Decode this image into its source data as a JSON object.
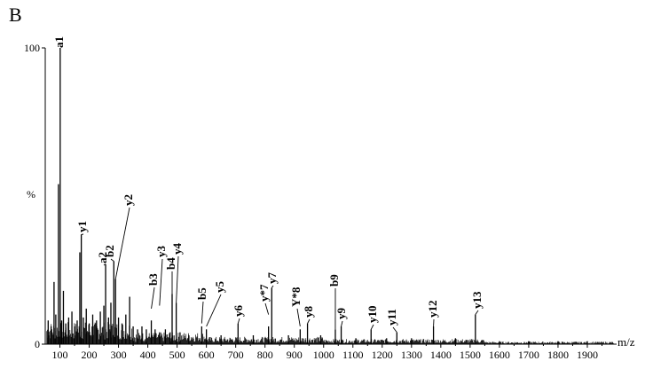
{
  "chart_data": {
    "type": "bar",
    "panel_label": "B",
    "ylabel": "%",
    "xlabel": "m/z",
    "xlim": [
      50,
      2000
    ],
    "ylim": [
      0,
      100
    ],
    "y_ticks": [
      0,
      100
    ],
    "x_ticks": [
      100,
      200,
      300,
      400,
      500,
      600,
      700,
      800,
      900,
      1000,
      1100,
      1200,
      1300,
      1400,
      1500,
      1600,
      1700,
      1800,
      1900
    ],
    "peaks": [
      {
        "x": 60,
        "y": 8
      },
      {
        "x": 70,
        "y": 6
      },
      {
        "x": 80,
        "y": 21
      },
      {
        "x": 86,
        "y": 10
      },
      {
        "x": 95,
        "y": 54
      },
      {
        "x": 101,
        "y": 100
      },
      {
        "x": 106,
        "y": 8
      },
      {
        "x": 112,
        "y": 18
      },
      {
        "x": 120,
        "y": 7
      },
      {
        "x": 130,
        "y": 9
      },
      {
        "x": 141,
        "y": 11
      },
      {
        "x": 150,
        "y": 6
      },
      {
        "x": 159,
        "y": 8
      },
      {
        "x": 168,
        "y": 31
      },
      {
        "x": 173,
        "y": 37
      },
      {
        "x": 180,
        "y": 9
      },
      {
        "x": 190,
        "y": 12
      },
      {
        "x": 200,
        "y": 7
      },
      {
        "x": 212,
        "y": 10
      },
      {
        "x": 225,
        "y": 8
      },
      {
        "x": 238,
        "y": 11
      },
      {
        "x": 250,
        "y": 13
      },
      {
        "x": 256,
        "y": 27
      },
      {
        "x": 266,
        "y": 9
      },
      {
        "x": 274,
        "y": 14
      },
      {
        "x": 284,
        "y": 28
      },
      {
        "x": 290,
        "y": 22
      },
      {
        "x": 300,
        "y": 9
      },
      {
        "x": 312,
        "y": 7
      },
      {
        "x": 325,
        "y": 10
      },
      {
        "x": 338,
        "y": 16
      },
      {
        "x": 350,
        "y": 6
      },
      {
        "x": 365,
        "y": 5
      },
      {
        "x": 380,
        "y": 6
      },
      {
        "x": 395,
        "y": 5
      },
      {
        "x": 412,
        "y": 8
      },
      {
        "x": 425,
        "y": 5
      },
      {
        "x": 440,
        "y": 4
      },
      {
        "x": 460,
        "y": 5
      },
      {
        "x": 476,
        "y": 4
      },
      {
        "x": 483,
        "y": 17
      },
      {
        "x": 497,
        "y": 14
      },
      {
        "x": 510,
        "y": 4
      },
      {
        "x": 540,
        "y": 3
      },
      {
        "x": 584,
        "y": 6
      },
      {
        "x": 600,
        "y": 5
      },
      {
        "x": 650,
        "y": 3
      },
      {
        "x": 708,
        "y": 7
      },
      {
        "x": 760,
        "y": 3
      },
      {
        "x": 812,
        "y": 6
      },
      {
        "x": 823,
        "y": 19
      },
      {
        "x": 880,
        "y": 3
      },
      {
        "x": 920,
        "y": 5
      },
      {
        "x": 945,
        "y": 7
      },
      {
        "x": 990,
        "y": 3
      },
      {
        "x": 1040,
        "y": 5
      },
      {
        "x": 1060,
        "y": 6
      },
      {
        "x": 1110,
        "y": 2
      },
      {
        "x": 1162,
        "y": 5
      },
      {
        "x": 1215,
        "y": 2
      },
      {
        "x": 1250,
        "y": 4
      },
      {
        "x": 1300,
        "y": 2
      },
      {
        "x": 1375,
        "y": 6
      },
      {
        "x": 1450,
        "y": 2
      },
      {
        "x": 1518,
        "y": 10
      },
      {
        "x": 1600,
        "y": 1
      },
      {
        "x": 1700,
        "y": 1
      },
      {
        "x": 1800,
        "y": 1
      },
      {
        "x": 1900,
        "y": 1
      }
    ],
    "annotations": [
      {
        "label": "a1",
        "x": 101,
        "y": 100
      },
      {
        "label": "y1",
        "x": 173,
        "y": 37
      },
      {
        "label": "a2",
        "x": 256,
        "y": 27
      },
      {
        "label": "b2",
        "x": 284,
        "y": 28
      },
      {
        "label": "y2",
        "x": 290,
        "y": 22
      },
      {
        "label": "b3",
        "x": 412,
        "y": 12
      },
      {
        "label": "y3",
        "x": 440,
        "y": 13
      },
      {
        "label": "b4",
        "x": 483,
        "y": 17
      },
      {
        "label": "y4",
        "x": 497,
        "y": 14
      },
      {
        "label": "b5",
        "x": 584,
        "y": 7
      },
      {
        "label": "y5",
        "x": 600,
        "y": 6
      },
      {
        "label": "y6",
        "x": 708,
        "y": 7
      },
      {
        "label": "y*7",
        "x": 812,
        "y": 10
      },
      {
        "label": "y7",
        "x": 823,
        "y": 19
      },
      {
        "label": "Y*8",
        "x": 920,
        "y": 6
      },
      {
        "label": "y8",
        "x": 945,
        "y": 7
      },
      {
        "label": "b9",
        "x": 1040,
        "y": 5
      },
      {
        "label": "y9",
        "x": 1060,
        "y": 6
      },
      {
        "label": "y10",
        "x": 1162,
        "y": 5
      },
      {
        "label": "y11",
        "x": 1250,
        "y": 4
      },
      {
        "label": "y12",
        "x": 1375,
        "y": 6
      },
      {
        "label": "y13",
        "x": 1518,
        "y": 10
      }
    ]
  }
}
